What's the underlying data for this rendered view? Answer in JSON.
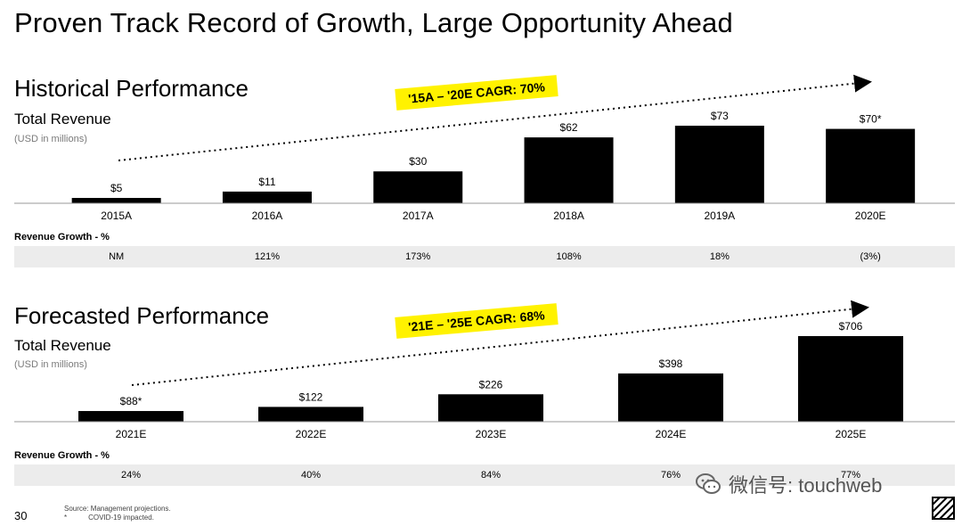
{
  "title": "Proven Track Record of Growth, Large Opportunity Ahead",
  "historical": {
    "section_title": "Historical Performance",
    "subtitle": "Total Revenue",
    "units": "(USD in millions)",
    "cagr_label": "'15A – '20E CAGR: 70%",
    "growth_label": "Revenue Growth - %",
    "growth": [
      "NM",
      "121%",
      "173%",
      "108%",
      "18%",
      "(3%)"
    ]
  },
  "forecast": {
    "section_title": "Forecasted Performance",
    "subtitle": "Total Revenue",
    "units": "(USD in millions)",
    "cagr_label": "'21E – '25E CAGR: 68%",
    "growth_label": "Revenue Growth - %",
    "growth": [
      "24%",
      "40%",
      "84%",
      "76%",
      "77%"
    ]
  },
  "footnote": {
    "source": "Source: Management projections.",
    "marker": "*",
    "note": "COVID-19 impacted."
  },
  "page_number": "30",
  "watermark": "微信号: touchweb",
  "chart_data": [
    {
      "type": "bar",
      "categories": [
        "2015A",
        "2016A",
        "2017A",
        "2018A",
        "2019A",
        "2020E"
      ],
      "values": [
        5,
        11,
        30,
        62,
        73,
        70
      ],
      "data_labels": [
        "$5",
        "$11",
        "$30",
        "$62",
        "$73",
        "$70*"
      ],
      "title": "Total Revenue",
      "ylabel": "(USD in millions)",
      "ylim": [
        0,
        73
      ],
      "color": "#000000"
    },
    {
      "type": "bar",
      "categories": [
        "2021E",
        "2022E",
        "2023E",
        "2024E",
        "2025E"
      ],
      "values": [
        88,
        122,
        226,
        398,
        706
      ],
      "data_labels": [
        "$88*",
        "$122",
        "$226",
        "$398",
        "$706"
      ],
      "title": "Total Revenue",
      "ylabel": "(USD in millions)",
      "ylim": [
        0,
        706
      ],
      "color": "#000000"
    }
  ]
}
